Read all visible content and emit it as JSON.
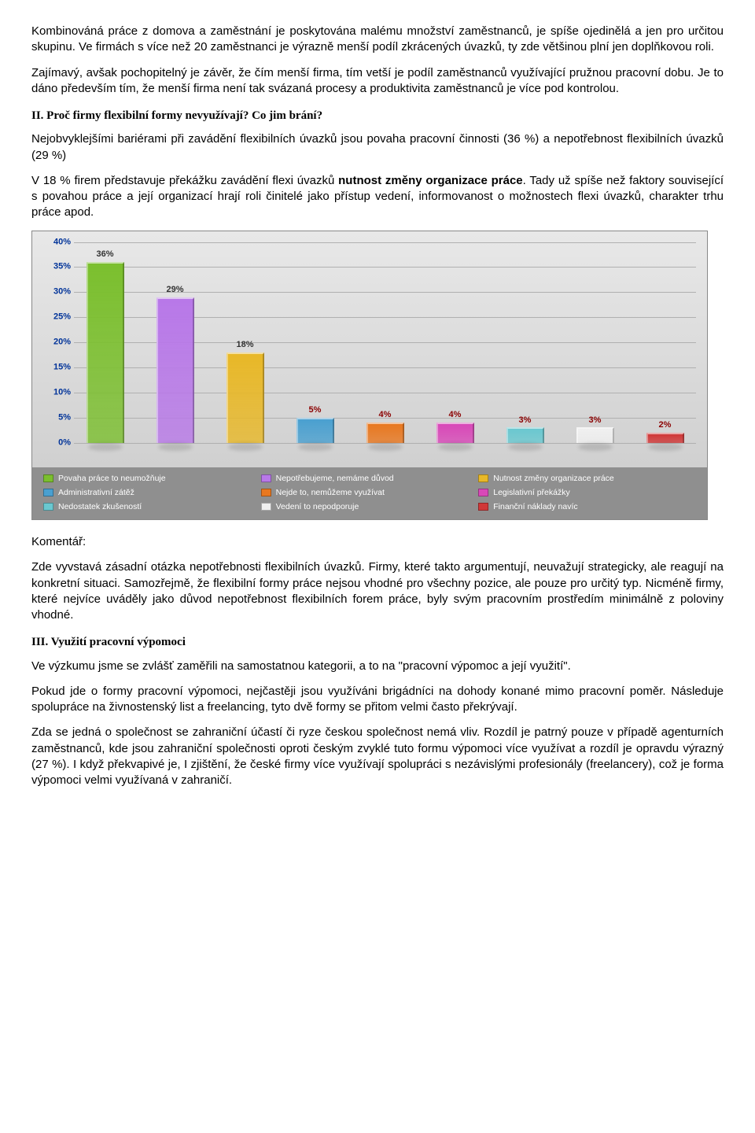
{
  "para1": "Kombinováná práce z domova a zaměstnání je poskytována malému množství zaměstnanců, je spíše ojedinělá a jen pro určitou skupinu. Ve firmách s více než 20 zaměstnanci je výrazně menší podíl zkrácených úvazků, ty zde většinou plní jen doplňkovou roli.",
  "para2": "Zajímavý, avšak pochopitelný je závěr, že čím menší firma, tím vetší je podíl zaměstnanců využívající pružnou pracovní dobu. Je to dáno především tím, že menší firma není tak svázaná procesy a produktivita zaměstnanců je více pod kontrolou.",
  "heading2": "II. Proč firmy flexibilní formy nevyužívají? Co jim brání?",
  "para3": "Nejobvyklejšími bariérami při zavádění flexibilních úvazků jsou povaha pracovní činnosti (36 %) a nepotřebnost flexibilních úvazků (29 %)",
  "para4a": "V 18 % firem představuje překážku zavádění flexi úvazků ",
  "para4b": "nutnost změny organizace práce",
  "para4c": ". Tady už spíše než faktory související s povahou práce a její organizací hrají roli činitelé jako přístup vedení, informovanost o možnostech flexi úvazků, charakter trhu práce apod.",
  "komentar": "Komentář:",
  "para5": "Zde vyvstavá zásadní otázka nepotřebnosti flexibilních úvazků. Firmy, které takto argumentují, neuvažují strategicky, ale reagují na konkretní situaci. Samozřejmě, že flexibilní formy práce nejsou vhodné pro všechny pozice, ale pouze pro určitý typ. Nicméně firmy, které nejvíce uváděly jako důvod nepotřebnost flexibilních forem práce, byly svým pracovním prostředím minimálně z poloviny vhodné.",
  "heading3": "III. Využití pracovní výpomoci",
  "para6": "Ve výzkumu jsme se zvlášť zaměřili na samostatnou kategorii, a to na \"pracovní výpomoc a její využití\".",
  "para7": "Pokud jde o formy pracovní výpomoci, nejčastěji jsou využíváni brigádníci na dohody konané mimo pracovní poměr. Následuje spolupráce na živnostenský list a freelancing, tyto dvě formy se přitom velmi často překrývají.",
  "para8": "Zda se jedná o společnost se zahraniční účastí či ryze českou společnost nemá vliv. Rozdíl je patrný pouze v případě agenturních zaměstnanců, kde jsou zahraniční společnosti oproti českým zvyklé tuto formu výpomoci více využívat a rozdíl je opravdu výrazný (27 %). I když překvapivé je, I zjištění, že české firmy více využívají spolupráci s nezávislými profesionály (freelancery), což je forma výpomoci velmi využívaná v zahraničí.",
  "chart": {
    "type": "bar",
    "ymax": 40,
    "ytick_step": 5,
    "ytick_suffix": "%",
    "label_color_dark": "#333333",
    "label_color_red": "#8b0000",
    "tick_color": "#003399",
    "bg_top": "#e8e8e8",
    "bg_bottom": "#d0d0d0",
    "grid_color": "#b0b0b0",
    "bars": [
      {
        "value": 36,
        "label": "36%",
        "color": "#7bbf2e",
        "label_color": "#333333"
      },
      {
        "value": 29,
        "label": "29%",
        "color": "#b878e8",
        "label_color": "#333333"
      },
      {
        "value": 18,
        "label": "18%",
        "color": "#e8b828",
        "label_color": "#333333"
      },
      {
        "value": 5,
        "label": "5%",
        "color": "#4aa0d0",
        "label_color": "#8b0000"
      },
      {
        "value": 4,
        "label": "4%",
        "color": "#e87820",
        "label_color": "#8b0000"
      },
      {
        "value": 4,
        "label": "4%",
        "color": "#d848b8",
        "label_color": "#8b0000"
      },
      {
        "value": 3,
        "label": "3%",
        "color": "#6ac8d0",
        "label_color": "#8b0000"
      },
      {
        "value": 3,
        "label": "3%",
        "color": "#f0f0f0",
        "label_color": "#8b0000"
      },
      {
        "value": 2,
        "label": "2%",
        "color": "#d03838",
        "label_color": "#8b0000"
      }
    ],
    "legend_bg": "#8f8f8f",
    "legend_color": "#ffffff",
    "legend": [
      {
        "label": "Povaha práce to neumožňuje",
        "color": "#7bbf2e"
      },
      {
        "label": "Nepotřebujeme, nemáme důvod",
        "color": "#b878e8"
      },
      {
        "label": "Nutnost změny organizace práce",
        "color": "#e8b828"
      },
      {
        "label": "Administrativní zátěž",
        "color": "#4aa0d0"
      },
      {
        "label": "Nejde to, nemůžeme využívat",
        "color": "#e87820"
      },
      {
        "label": "Legislativní překážky",
        "color": "#d848b8"
      },
      {
        "label": "Nedostatek zkušeností",
        "color": "#6ac8d0"
      },
      {
        "label": "Vedení to nepodporuje",
        "color": "#f0f0f0"
      },
      {
        "label": "Finanční náklady navíc",
        "color": "#d03838"
      }
    ]
  }
}
